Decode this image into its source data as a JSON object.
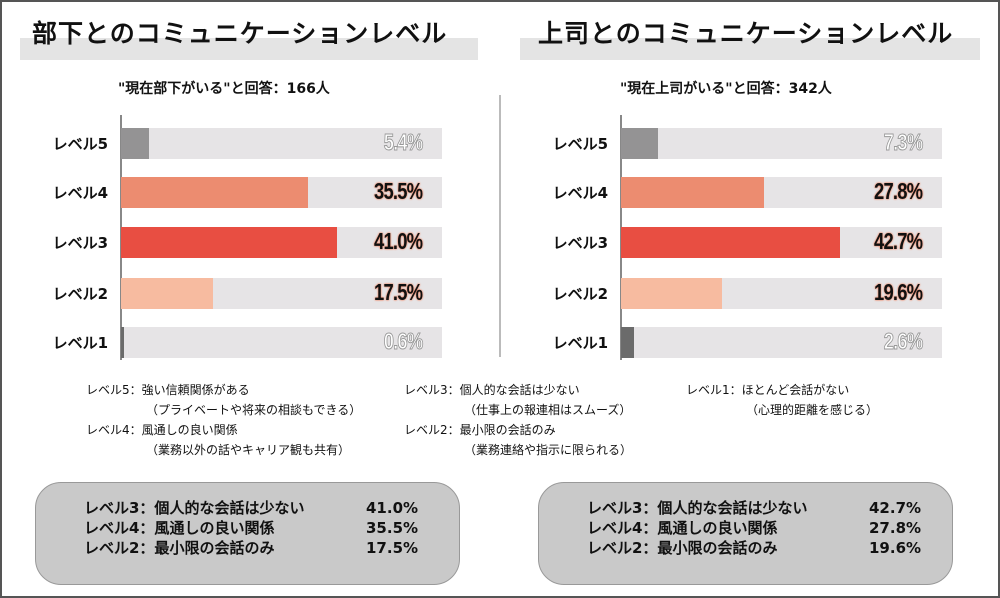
{
  "chart_data": [
    {
      "type": "bar",
      "orientation": "horizontal",
      "title": "部下とのコミュニケーションレベル",
      "subtitle": "\"現在部下がいる\"と回答：166人",
      "categories": [
        "レベル5",
        "レベル4",
        "レベル3",
        "レベル2",
        "レベル1"
      ],
      "values": [
        5.4,
        35.5,
        41.0,
        17.5,
        0.6
      ],
      "labels": [
        "5.4%",
        "35.5%",
        "41.0%",
        "17.5%",
        "0.6%"
      ],
      "colors": [
        "#949394",
        "#ec8c70",
        "#e84e42",
        "#f7bba0",
        "#6b6b6b"
      ],
      "xlim": [
        0,
        61
      ]
    },
    {
      "type": "bar",
      "orientation": "horizontal",
      "title": "上司とのコミュニケーションレベル",
      "subtitle": "\"現在上司がいる\"と回答：342人",
      "categories": [
        "レベル5",
        "レベル4",
        "レベル3",
        "レベル2",
        "レベル1"
      ],
      "values": [
        7.3,
        27.8,
        42.7,
        19.6,
        2.6
      ],
      "labels": [
        "7.3%",
        "27.8%",
        "42.7%",
        "19.6%",
        "2.6%"
      ],
      "colors": [
        "#949394",
        "#ec8c70",
        "#e84e42",
        "#f7bba0",
        "#6b6b6b"
      ],
      "xlim": [
        0,
        62.5
      ]
    }
  ],
  "legend": {
    "col1": [
      "レベル5：強い信頼関係がある",
      "（プライベートや将来の相談もできる）",
      "レベル4：風通しの良い関係",
      "（業務以外の話やキャリア観も共有）"
    ],
    "col2": [
      "レベル3：個人的な会話は少ない",
      "（仕事上の報連相はスムーズ）",
      "レベル2：最小限の会話のみ",
      "（業務連絡や指示に限られる）"
    ],
    "col3": [
      "レベル1：ほとんど会話がない",
      "（心理的距離を感じる）"
    ]
  },
  "summaries": [
    [
      {
        "label": "レベル3：個人的な会話は少ない",
        "value": "41.0%"
      },
      {
        "label": "レベル4：風通しの良い関係",
        "value": "35.5%"
      },
      {
        "label": "レベル2：最小限の会話のみ",
        "value": "17.5%"
      }
    ],
    [
      {
        "label": "レベル3：個人的な会話は少ない",
        "value": "42.7%"
      },
      {
        "label": "レベル4：風通しの良い関係",
        "value": "27.8%"
      },
      {
        "label": "レベル2：最小限の会話のみ",
        "value": "19.6%"
      }
    ]
  ]
}
